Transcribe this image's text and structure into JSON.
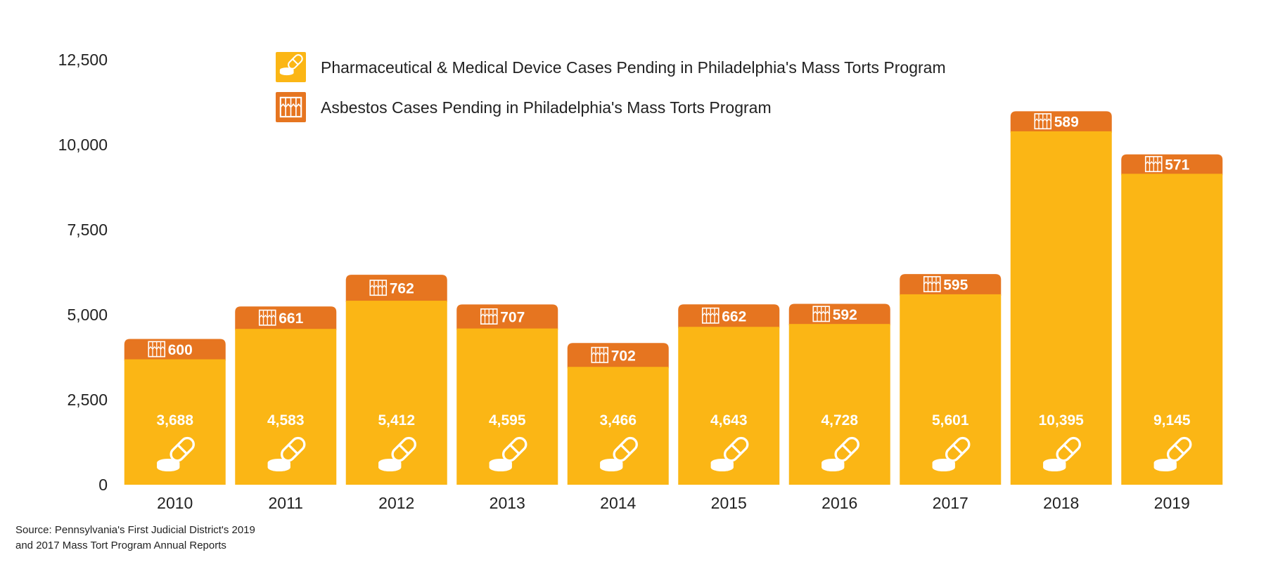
{
  "chart_data": {
    "type": "bar",
    "stacked": true,
    "categories": [
      "2010",
      "2011",
      "2012",
      "2013",
      "2014",
      "2015",
      "2016",
      "2017",
      "2018",
      "2019"
    ],
    "series": [
      {
        "name": "Pharmaceutical & Medical Device Cases Pending in Philadelphia's Mass Torts Program",
        "values": [
          3688,
          4583,
          5412,
          4595,
          3466,
          4643,
          4728,
          5601,
          10395,
          9145
        ],
        "labels": [
          "3,688",
          "4,583",
          "5,412",
          "4,595",
          "3,466",
          "4,643",
          "4,728",
          "5,601",
          "10,395",
          "9,145"
        ],
        "color": "#FBB615",
        "icon": "pills-icon"
      },
      {
        "name": "Asbestos Cases Pending in Philadelphia's Mass Torts Program",
        "values": [
          600,
          661,
          762,
          707,
          702,
          662,
          592,
          595,
          589,
          571
        ],
        "labels": [
          "600",
          "661",
          "762",
          "707",
          "702",
          "662",
          "592",
          "595",
          "589",
          "571"
        ],
        "color": "#E67520",
        "icon": "asbestos-icon"
      }
    ],
    "ylim": [
      0,
      12500
    ],
    "yticks": [
      0,
      2500,
      5000,
      7500,
      10000,
      12500
    ],
    "ytick_labels": [
      "0",
      "2,500",
      "5,000",
      "7,500",
      "10,000",
      "12,500"
    ],
    "grid": false,
    "legend_position": "top"
  },
  "source_note": {
    "line1": "Source: Pennsylvania's First Judicial District's 2019",
    "line2": "and 2017 Mass Tort Program Annual Reports"
  }
}
